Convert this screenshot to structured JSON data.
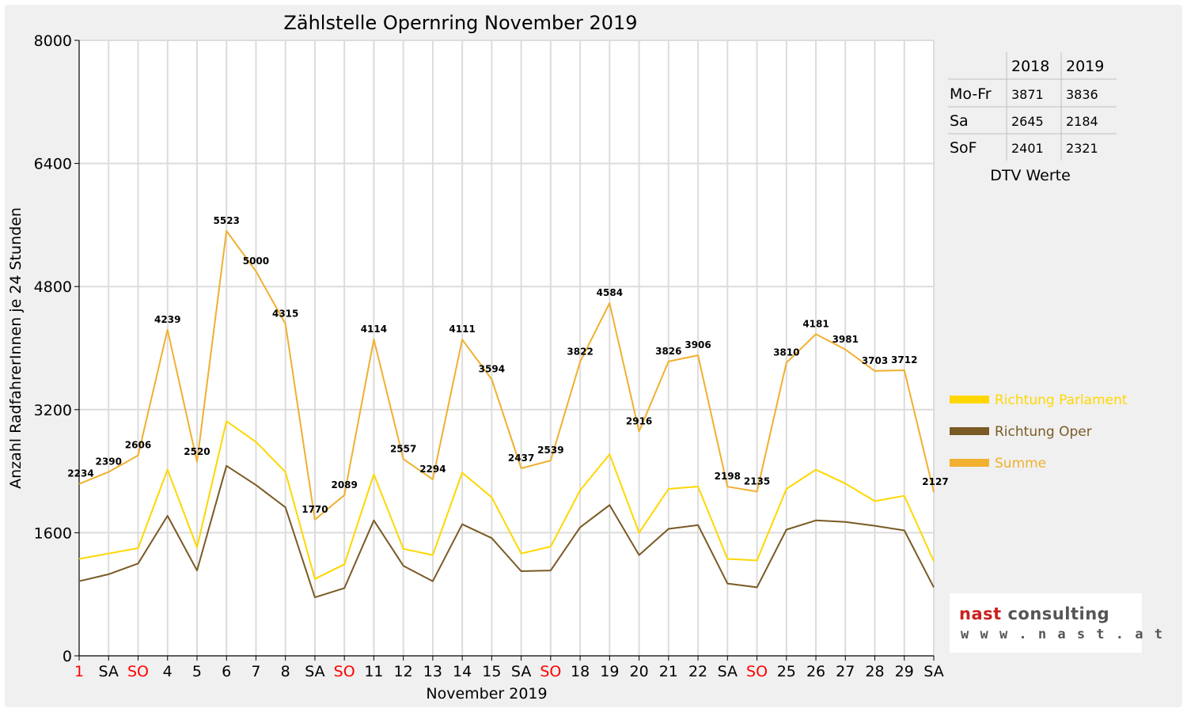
{
  "chart_data": {
    "type": "line",
    "title": "Zählstelle Opernring November 2019",
    "xlabel": "November 2019",
    "ylabel": "Anzahl RadfahrerInnen je 24 Stunden",
    "ylim": [
      0,
      8000
    ],
    "yticks": [
      "0",
      "1600",
      "3200",
      "4800",
      "6400",
      "8000"
    ],
    "grid": true,
    "legend_position": "right",
    "categories": [
      "1",
      "SA",
      "SO",
      "4",
      "5",
      "6",
      "7",
      "8",
      "SA",
      "SO",
      "11",
      "12",
      "13",
      "14",
      "15",
      "SA",
      "SO",
      "18",
      "19",
      "20",
      "21",
      "22",
      "SA",
      "SO",
      "25",
      "26",
      "27",
      "28",
      "29",
      "SA"
    ],
    "category_colors": [
      "#ff0000",
      "#000000",
      "#ff0000",
      "#000000",
      "#000000",
      "#000000",
      "#000000",
      "#000000",
      "#000000",
      "#ff0000",
      "#000000",
      "#000000",
      "#000000",
      "#000000",
      "#000000",
      "#000000",
      "#ff0000",
      "#000000",
      "#000000",
      "#000000",
      "#000000",
      "#000000",
      "#000000",
      "#ff0000",
      "#000000",
      "#000000",
      "#000000",
      "#000000",
      "#000000",
      "#000000"
    ],
    "series": [
      {
        "name": "Richtung Parlament",
        "color": "#ffd700",
        "values": [
          1260,
          1330,
          1400,
          2420,
          1410,
          3050,
          2780,
          2390,
          1000,
          1190,
          2360,
          1390,
          1310,
          2380,
          2060,
          1330,
          1420,
          2150,
          2620,
          1600,
          2170,
          2200,
          1260,
          1240,
          2170,
          2420,
          2240,
          2010,
          2080,
          1230
        ]
      },
      {
        "name": "Richtung Oper",
        "color": "#7a5a25",
        "values": [
          970,
          1060,
          1200,
          1820,
          1110,
          2470,
          2220,
          1930,
          760,
          880,
          1760,
          1170,
          970,
          1710,
          1530,
          1100,
          1110,
          1670,
          1960,
          1310,
          1650,
          1700,
          940,
          890,
          1640,
          1760,
          1740,
          1690,
          1630,
          890
        ]
      },
      {
        "name": "Summe",
        "color": "#f0b030",
        "values": [
          2234,
          2390,
          2606,
          4239,
          2520,
          5523,
          5000,
          4315,
          1770,
          2089,
          4114,
          2557,
          2294,
          4111,
          3594,
          2437,
          2539,
          3822,
          4584,
          2916,
          3826,
          3906,
          2198,
          2135,
          3810,
          4181,
          3981,
          3703,
          3712,
          2127
        ]
      }
    ],
    "data_labels": [
      "2234",
      "2390",
      "2606",
      "4239",
      "2520",
      "5523",
      "5000",
      "4315",
      "1770",
      "2089",
      "4114",
      "2557",
      "2294",
      "4111",
      "3594",
      "2437",
      "2539",
      "3822",
      "4584",
      "2916",
      "3826",
      "3906",
      "2198",
      "2135",
      "3810",
      "4181",
      "3981",
      "3703",
      "3712",
      "2127"
    ]
  },
  "dtv_table": {
    "caption": "DTV Werte",
    "headers": [
      "2018",
      "2019"
    ],
    "rows": [
      {
        "label": "Mo-Fr",
        "v2018": "3871",
        "v2019": "3836"
      },
      {
        "label": "Sa",
        "v2018": "2645",
        "v2019": "2184"
      },
      {
        "label": "SoF",
        "v2018": "2401",
        "v2019": "2321"
      }
    ]
  },
  "logo": {
    "company": "nast consulting",
    "url": "www.nast.at"
  }
}
